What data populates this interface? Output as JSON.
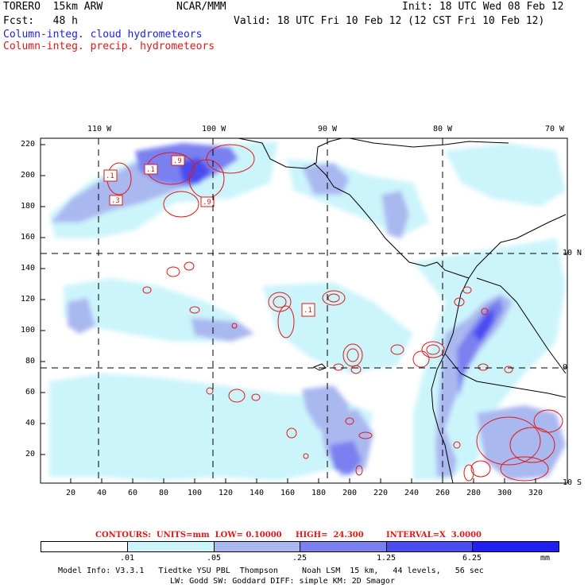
{
  "header": {
    "model": "TORERO  15km ARW",
    "center": "NCAR/MMM",
    "init": "Init: 18 UTC Wed 08 Feb 12",
    "fcst": "Fcst:   48 h",
    "valid": "Valid: 18 UTC Fri 10 Feb 12 (12 CST Fri 10 Feb 12)",
    "field1": "Column-integ. cloud hydrometeors",
    "field2": "Column-integ. precip. hydrometeors"
  },
  "colors": {
    "cloud_text": "#1e1ee6",
    "precip_text": "#e01818",
    "coast": "#000000",
    "contour": "#e01818"
  },
  "map": {
    "lon_labels": [
      "110 W",
      "100 W",
      "90 W",
      "80 W",
      "70 W"
    ],
    "lat_labels": [
      "10 N",
      "0",
      "10 S"
    ],
    "x_ticks": [
      "20",
      "40",
      "60",
      "80",
      "100",
      "120",
      "140",
      "160",
      "180",
      "200",
      "220",
      "240",
      "260",
      "280",
      "300",
      "320"
    ],
    "y_ticks": [
      "220",
      "200",
      "180",
      "160",
      "140",
      "120",
      "100",
      "80",
      "60",
      "40",
      "20"
    ],
    "contour_labels": [
      ".1",
      ".1",
      ".9",
      ".3",
      ".9",
      ".1"
    ]
  },
  "contour_info": {
    "label": "CONTOURS:  UNITS=mm  LOW= 0.10000",
    "high": "HIGH=  24.300",
    "interval": "INTERVAL=X  3.0000"
  },
  "legend": {
    "values": [
      ".01",
      ".05",
      ".25",
      "1.25",
      "6.25"
    ],
    "units": "mm",
    "colors": [
      "#ffffff",
      "#ccf4fb",
      "#aab8f0",
      "#7a80f0",
      "#4a4cf0",
      "#1f1ff0"
    ]
  },
  "footer": {
    "line1": "Model Info: V3.3.1   Tiedtke YSU PBL  Thompson     Noah LSM  15 km,   44 levels,   56 sec",
    "line2": "LW: Godd SW: Goddard DIFF: simple KM: 2D Smagor"
  }
}
